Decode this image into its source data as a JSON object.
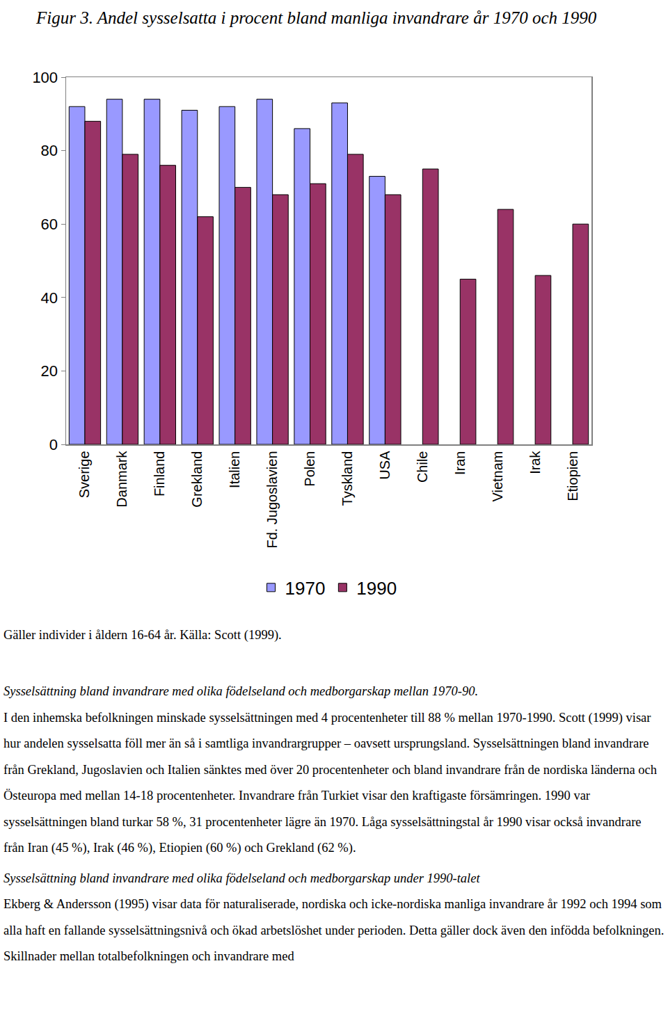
{
  "caption": "Figur 3. Andel sysselsatta i procent bland manliga invandrare år 1970 och 1990",
  "chart_data": {
    "type": "bar",
    "categories": [
      "Sverige",
      "Danmark",
      "Finland",
      "Grekland",
      "Italien",
      "Fd. Jugoslavien",
      "Polen",
      "Tyskland",
      "USA",
      "Chile",
      "Iran",
      "Vietnam",
      "Irak",
      "Etiopien"
    ],
    "series": [
      {
        "name": "1970",
        "color": "#9999ff",
        "values": [
          92,
          94,
          94,
          91,
          92,
          94,
          86,
          93,
          73,
          null,
          null,
          null,
          null,
          null
        ]
      },
      {
        "name": "1990",
        "color": "#993366",
        "values": [
          88,
          79,
          76,
          62,
          70,
          68,
          71,
          79,
          68,
          75,
          45,
          64,
          46,
          60
        ]
      }
    ],
    "ylim": [
      0,
      100
    ],
    "yticks": [
      0,
      20,
      40,
      60,
      80,
      100
    ],
    "grid": false,
    "legend": "bottom"
  },
  "note": "Gäller individer i åldern 16-64 år. Källa: Scott (1999).",
  "sections": [
    {
      "heading": "Sysselsättning bland invandrare med olika födelseland och medborgarskap mellan 1970-90.",
      "text": "I den inhemska befolkningen minskade sysselsättningen med 4 procentenheter till 88 % mellan 1970-1990. Scott (1999) visar hur andelen sysselsatta föll mer än så i samtliga invandrargrupper – oavsett ursprungsland. Sysselsättningen bland invandrare från Grekland, Jugoslavien och Italien sänktes med över 20 procentenheter och bland invandrare från de nordiska länderna och Östeuropa med mellan 14-18 procentenheter. Invandrare från Turkiet visar den kraftigaste försämringen. 1990 var sysselsättningen bland turkar 58 %, 31 procentenheter lägre än 1970. Låga sysselsättningstal år 1990 visar också invandrare från Iran (45 %), Irak (46 %), Etiopien (60 %) och Grekland (62 %)."
    },
    {
      "heading": "Sysselsättning bland invandrare med olika födelseland och medborgarskap under 1990-talet",
      "text": "Ekberg & Andersson (1995) visar data för naturaliserade, nordiska och icke-nordiska manliga invandrare år 1992 och 1994 som alla haft en fallande sysselsättningsnivå och ökad arbetslöshet under perioden. Detta gäller dock även den infödda befolkningen. Skillnader mellan totalbefolkningen och invandrare med"
    }
  ]
}
